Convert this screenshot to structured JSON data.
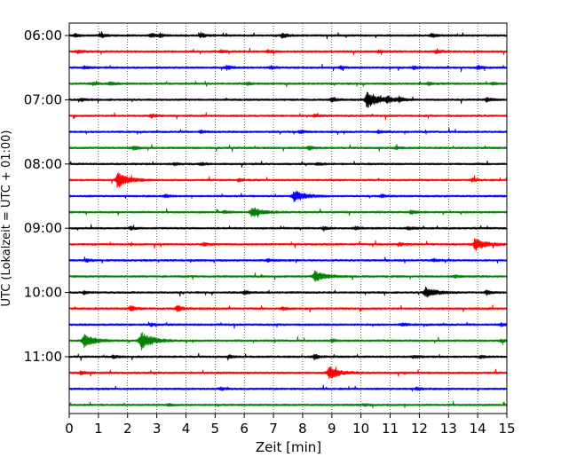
{
  "chart_data": {
    "type": "line",
    "title": "",
    "xlabel": "Zeit  [min]",
    "ylabel": "UTC (Lokalzeit = UTC + 01:00)",
    "xlim": [
      0,
      15
    ],
    "x_ticks": [
      "0",
      "1",
      "2",
      "3",
      "4",
      "5",
      "6",
      "7",
      "8",
      "9",
      "10",
      "11",
      "12",
      "13",
      "14",
      "15"
    ],
    "y_tick_labels": [
      "06:00",
      "07:00",
      "08:00",
      "09:00",
      "10:00",
      "11:00"
    ],
    "grid": "vertical-dotted",
    "row_minutes": 15,
    "colors": [
      "#000000",
      "#ff0000",
      "#0000ff",
      "#008000"
    ],
    "rows": [
      {
        "time": "06:00",
        "color": "#000000",
        "events": [
          {
            "x": 0.2,
            "amp": 0.25
          },
          {
            "x": 1.1,
            "amp": 0.3
          },
          {
            "x": 2.8,
            "amp": 0.3
          },
          {
            "x": 3.1,
            "amp": 0.25
          },
          {
            "x": 4.5,
            "amp": 0.35
          },
          {
            "x": 7.3,
            "amp": 0.4
          },
          {
            "x": 12.4,
            "amp": 0.3
          }
        ]
      },
      {
        "time": "06:15",
        "color": "#ff0000",
        "events": [
          {
            "x": 0.3,
            "amp": 0.25
          },
          {
            "x": 5.2,
            "amp": 0.2
          },
          {
            "x": 6.8,
            "amp": 0.2
          },
          {
            "x": 10.6,
            "amp": 0.2
          },
          {
            "x": 12.6,
            "amp": 0.3
          }
        ]
      },
      {
        "time": "06:30",
        "color": "#0000ff",
        "events": [
          {
            "x": 0.5,
            "amp": 0.2
          },
          {
            "x": 5.4,
            "amp": 0.3
          },
          {
            "x": 6.9,
            "amp": 0.2
          },
          {
            "x": 9.3,
            "amp": 0.2
          },
          {
            "x": 11.8,
            "amp": 0.25
          },
          {
            "x": 14.0,
            "amp": 0.25
          }
        ]
      },
      {
        "time": "06:45",
        "color": "#008000",
        "events": [
          {
            "x": 0.8,
            "amp": 0.2
          },
          {
            "x": 1.4,
            "amp": 0.3
          },
          {
            "x": 6.1,
            "amp": 0.2
          },
          {
            "x": 12.3,
            "amp": 0.2
          },
          {
            "x": 14.5,
            "amp": 0.2
          }
        ]
      },
      {
        "time": "07:00",
        "color": "#000000",
        "events": [
          {
            "x": 0.4,
            "amp": 0.2
          },
          {
            "x": 9.0,
            "amp": 0.35
          },
          {
            "x": 10.2,
            "amp": 1.2
          },
          {
            "x": 10.9,
            "amp": 0.5
          },
          {
            "x": 11.3,
            "amp": 0.4
          },
          {
            "x": 14.3,
            "amp": 0.3
          }
        ]
      },
      {
        "time": "07:15",
        "color": "#ff0000",
        "events": [
          {
            "x": 2.8,
            "amp": 0.25
          },
          {
            "x": 8.4,
            "amp": 0.2
          }
        ]
      },
      {
        "time": "07:30",
        "color": "#0000ff",
        "events": [
          {
            "x": 4.5,
            "amp": 0.2
          },
          {
            "x": 7.9,
            "amp": 0.2
          },
          {
            "x": 10.6,
            "amp": 0.2
          }
        ]
      },
      {
        "time": "07:45",
        "color": "#008000",
        "events": [
          {
            "x": 2.2,
            "amp": 0.3
          },
          {
            "x": 8.2,
            "amp": 0.25
          },
          {
            "x": 11.2,
            "amp": 0.2
          }
        ]
      },
      {
        "time": "08:00",
        "color": "#000000",
        "events": [
          {
            "x": 3.6,
            "amp": 0.2
          },
          {
            "x": 4.5,
            "amp": 0.2
          },
          {
            "x": 8.5,
            "amp": 0.2
          }
        ]
      },
      {
        "time": "08:15",
        "color": "#ff0000",
        "events": [
          {
            "x": 1.65,
            "amp": 1.1
          },
          {
            "x": 5.8,
            "amp": 0.2
          },
          {
            "x": 13.8,
            "amp": 0.2
          }
        ]
      },
      {
        "time": "08:30",
        "color": "#0000ff",
        "events": [
          {
            "x": 3.3,
            "amp": 0.2
          },
          {
            "x": 7.7,
            "amp": 0.8
          },
          {
            "x": 10.7,
            "amp": 0.2
          }
        ]
      },
      {
        "time": "08:45",
        "color": "#008000",
        "events": [
          {
            "x": 5.3,
            "amp": 0.2
          },
          {
            "x": 6.25,
            "amp": 0.7
          },
          {
            "x": 11.7,
            "amp": 0.25
          }
        ]
      },
      {
        "time": "09:00",
        "color": "#000000",
        "events": [
          {
            "x": 2.1,
            "amp": 0.2
          },
          {
            "x": 8.7,
            "amp": 0.2
          },
          {
            "x": 9.8,
            "amp": 0.2
          },
          {
            "x": 11.6,
            "amp": 0.25
          }
        ]
      },
      {
        "time": "09:15",
        "color": "#ff0000",
        "events": [
          {
            "x": 4.6,
            "amp": 0.2
          },
          {
            "x": 11.3,
            "amp": 0.2
          },
          {
            "x": 13.9,
            "amp": 0.9
          }
        ]
      },
      {
        "time": "09:30",
        "color": "#0000ff",
        "events": [
          {
            "x": 0.6,
            "amp": 0.2
          },
          {
            "x": 6.8,
            "amp": 0.2
          },
          {
            "x": 12.5,
            "amp": 0.2
          }
        ]
      },
      {
        "time": "09:45",
        "color": "#008000",
        "events": [
          {
            "x": 8.4,
            "amp": 0.75
          },
          {
            "x": 13.2,
            "amp": 0.2
          }
        ]
      },
      {
        "time": "10:00",
        "color": "#000000",
        "events": [
          {
            "x": 0.5,
            "amp": 0.2
          },
          {
            "x": 6.0,
            "amp": 0.3
          },
          {
            "x": 12.2,
            "amp": 0.75
          },
          {
            "x": 14.3,
            "amp": 0.35
          }
        ]
      },
      {
        "time": "10:15",
        "color": "#ff0000",
        "events": [
          {
            "x": 2.1,
            "amp": 0.4
          },
          {
            "x": 3.7,
            "amp": 0.5
          },
          {
            "x": 7.3,
            "amp": 0.2
          }
        ]
      },
      {
        "time": "10:30",
        "color": "#0000ff",
        "events": [
          {
            "x": 2.8,
            "amp": 0.2
          },
          {
            "x": 11.4,
            "amp": 0.2
          },
          {
            "x": 14.8,
            "amp": 0.2
          }
        ]
      },
      {
        "time": "10:45",
        "color": "#008000",
        "events": [
          {
            "x": 0.5,
            "amp": 0.9
          },
          {
            "x": 2.45,
            "amp": 1.3
          },
          {
            "x": 9.0,
            "amp": 0.2
          },
          {
            "x": 14.8,
            "amp": 0.2
          }
        ]
      },
      {
        "time": "11:00",
        "color": "#000000",
        "events": [
          {
            "x": 1.5,
            "amp": 0.2
          },
          {
            "x": 5.5,
            "amp": 0.2
          },
          {
            "x": 8.4,
            "amp": 0.35
          },
          {
            "x": 11.8,
            "amp": 0.2
          },
          {
            "x": 14.1,
            "amp": 0.2
          }
        ]
      },
      {
        "time": "11:15",
        "color": "#ff0000",
        "events": [
          {
            "x": 0.4,
            "amp": 0.25
          },
          {
            "x": 8.9,
            "amp": 0.85
          }
        ]
      },
      {
        "time": "11:30",
        "color": "#0000ff",
        "events": [
          {
            "x": 5.2,
            "amp": 0.2
          },
          {
            "x": 11.9,
            "amp": 0.2
          }
        ]
      },
      {
        "time": "11:45",
        "color": "#008000",
        "events": [
          {
            "x": 3.4,
            "amp": 0.15
          },
          {
            "x": 10.1,
            "amp": 0.15
          }
        ]
      }
    ]
  }
}
